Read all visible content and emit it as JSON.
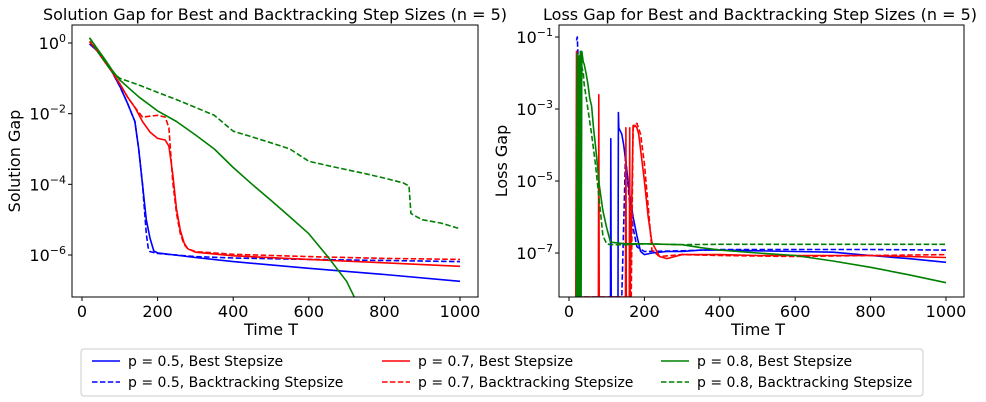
{
  "chart_data": [
    {
      "type": "line",
      "title": "Solution Gap for Best and Backtracking Step Sizes (n = 5)",
      "xlabel": "Time T",
      "ylabel": "Solution Gap",
      "yscale": "log",
      "xlim": [
        -30,
        1040
      ],
      "ylim": [
        5e-08,
        3
      ],
      "xticks": [
        0,
        200,
        400,
        600,
        800,
        1000
      ],
      "xtick_labels": [
        "0",
        "200",
        "400",
        "600",
        "800",
        "1000"
      ],
      "yticks": [
        1,
        0.01,
        0.0001,
        1e-06
      ],
      "ytick_labels": [
        "10^0",
        "10^-2",
        "10^-4",
        "10^-6"
      ],
      "grid": false,
      "series": [
        {
          "name": "p = 0.5, Best Stepsize",
          "color": "#0000ff",
          "dash": "solid",
          "x": [
            20,
            40,
            60,
            80,
            100,
            120,
            140,
            150,
            160,
            170,
            180,
            190,
            200,
            300,
            400,
            600,
            800,
            1000
          ],
          "y": [
            0.95,
            0.6,
            0.3,
            0.15,
            0.06,
            0.02,
            0.006,
            0.001,
            0.0001,
            1e-05,
            3e-06,
            1.3e-06,
            1.15e-06,
            8.5e-07,
            6.5e-07,
            4.2e-07,
            2.8e-07,
            1.8e-07
          ]
        },
        {
          "name": "p = 0.5, Backtracking Stepsize",
          "color": "#0000ff",
          "dash": "dashed",
          "x": [
            20,
            40,
            60,
            80,
            100,
            120,
            140,
            150,
            160,
            165,
            170,
            175,
            180,
            200,
            300,
            400,
            600,
            800,
            1000
          ],
          "y": [
            0.95,
            0.6,
            0.3,
            0.15,
            0.06,
            0.02,
            0.006,
            0.001,
            0.0001,
            2e-05,
            4e-06,
            1.6e-06,
            1.25e-06,
            1.1e-06,
            9e-07,
            8.2e-07,
            7.5e-07,
            7e-07,
            6.5e-07
          ]
        },
        {
          "name": "p = 0.7, Best Stepsize",
          "color": "#ff0000",
          "dash": "solid",
          "x": [
            20,
            40,
            60,
            80,
            100,
            120,
            140,
            160,
            180,
            200,
            220,
            230,
            240,
            250,
            260,
            270,
            280,
            300,
            400,
            600,
            800,
            1000
          ],
          "y": [
            1.1,
            0.6,
            0.3,
            0.15,
            0.07,
            0.03,
            0.015,
            0.006,
            0.003,
            0.002,
            0.0018,
            0.0012,
            0.0002,
            2e-05,
            5e-06,
            2.2e-06,
            1.5e-06,
            1.2e-06,
            9.5e-07,
            7.5e-07,
            6e-07,
            4.8e-07
          ]
        },
        {
          "name": "p = 0.7, Backtracking Stepsize",
          "color": "#ff0000",
          "dash": "dashed",
          "x": [
            20,
            40,
            60,
            80,
            100,
            120,
            140,
            160,
            180,
            200,
            220,
            230,
            235,
            240,
            250,
            260,
            270,
            280,
            300,
            400,
            600,
            800,
            1000
          ],
          "y": [
            1.1,
            0.6,
            0.3,
            0.15,
            0.07,
            0.03,
            0.015,
            0.008,
            0.0085,
            0.009,
            0.008,
            0.004,
            0.0007,
            0.00012,
            1.5e-05,
            4e-06,
            2e-06,
            1.5e-06,
            1.25e-06,
            1.05e-06,
            9e-07,
            8e-07,
            7.5e-07
          ]
        },
        {
          "name": "p = 0.8, Best Stepsize",
          "color": "#008000",
          "dash": "solid",
          "x": [
            20,
            40,
            60,
            80,
            100,
            150,
            200,
            250,
            300,
            350,
            400,
            450,
            500,
            550,
            600,
            650,
            700,
            730,
            750,
            800,
            900,
            1000
          ],
          "y": [
            1.4,
            0.7,
            0.35,
            0.17,
            0.09,
            0.03,
            0.012,
            0.006,
            0.0025,
            0.001,
            0.0003,
            0.0001,
            3.5e-05,
            1.2e-05,
            4e-06,
            9e-07,
            1.8e-07,
            4e-08,
            2.5e-08,
            2.2e-08,
            1.9e-08,
            1.6e-08
          ]
        },
        {
          "name": "p = 0.8, Backtracking Stepsize",
          "color": "#008000",
          "dash": "dashed",
          "x": [
            20,
            40,
            60,
            80,
            100,
            150,
            200,
            250,
            300,
            350,
            400,
            450,
            500,
            550,
            600,
            650,
            700,
            750,
            800,
            850,
            865,
            870,
            880,
            900,
            950,
            1000
          ],
          "y": [
            1.4,
            0.6,
            0.3,
            0.15,
            0.1,
            0.065,
            0.04,
            0.025,
            0.015,
            0.009,
            0.0032,
            0.0022,
            0.0015,
            0.001,
            0.00045,
            0.00034,
            0.00026,
            0.0002,
            0.00015,
            0.00011,
            9e-05,
            1.5e-05,
            1.3e-05,
            1e-05,
            8e-06,
            5.5e-06
          ]
        }
      ]
    },
    {
      "type": "line",
      "title": "Loss Gap for Best and Backtracking Step Sizes (n = 5)",
      "xlabel": "Time T",
      "ylabel": "Loss Gap",
      "yscale": "log",
      "xlim": [
        -30,
        1040
      ],
      "ylim": [
        6e-09,
        0.2
      ],
      "xticks": [
        0,
        200,
        400,
        600,
        800,
        1000
      ],
      "xtick_labels": [
        "0",
        "200",
        "400",
        "600",
        "800",
        "1000"
      ],
      "yticks": [
        0.1,
        0.001,
        1e-05,
        1e-07
      ],
      "ytick_labels": [
        "10^-1",
        "10^-3",
        "10^-5",
        "10^-7"
      ],
      "grid": false,
      "series": [
        {
          "name": "p = 0.5, Best Stepsize",
          "color": "#0000ff",
          "dash": "solid",
          "x": [
            110,
            111,
            112,
            130,
            131,
            132,
            140,
            145,
            150,
            160,
            170,
            180,
            190,
            200,
            220,
            260,
            300,
            350,
            400,
            500,
            600,
            700,
            800,
            900,
            1000
          ],
          "y": [
            6e-09,
            0.00015,
            6e-09,
            6e-09,
            0.0008,
            0.0003,
            0.0002,
            0.0001,
            4e-05,
            5e-06,
            1e-06,
            3e-07,
            1.1e-07,
            9e-08,
            1e-07,
            1.1e-07,
            1.1e-07,
            1.2e-07,
            1.2e-07,
            1.15e-07,
            1.1e-07,
            1.05e-07,
            8.5e-08,
            7e-08,
            5.5e-08
          ]
        },
        {
          "name": "p = 0.5, Backtracking Stepsize",
          "color": "#0000ff",
          "dash": "dashed",
          "x": [
            20,
            22,
            24,
            26,
            140,
            150,
            160,
            170,
            180,
            200,
            300,
            400,
            600,
            800,
            1000
          ],
          "y": [
            0.08,
            0.1,
            0.03,
            6e-09,
            6e-09,
            5e-05,
            3e-06,
            5e-07,
            1.5e-07,
            1.1e-07,
            1.15e-07,
            1.25e-07,
            1.25e-07,
            1.25e-07,
            1.2e-07
          ]
        },
        {
          "name": "p = 0.7, Best Stepsize",
          "color": "#ff0000",
          "dash": "solid",
          "x": [
            18,
            20,
            22,
            24,
            78,
            79,
            80,
            150,
            151,
            152,
            160,
            161,
            162,
            170,
            175,
            180,
            185,
            200,
            210,
            220,
            240,
            260,
            300,
            400,
            500,
            600,
            800,
            1000
          ],
          "y": [
            6e-09,
            0.04,
            0.015,
            6e-09,
            6e-09,
            0.0025,
            6e-09,
            6e-09,
            0.0003,
            6e-09,
            6e-09,
            0.0003,
            6e-09,
            0.00035,
            0.00035,
            0.0003,
            0.0002,
            1e-05,
            1e-06,
            2e-07,
            8e-08,
            7e-08,
            9e-08,
            9e-08,
            8.5e-08,
            8.5e-08,
            8.5e-08,
            7.5e-08
          ]
        },
        {
          "name": "p = 0.7, Backtracking Stepsize",
          "color": "#ff0000",
          "dash": "dashed",
          "x": [
            165,
            170,
            180,
            190,
            200,
            210,
            220,
            240,
            300,
            400,
            600,
            800,
            1000
          ],
          "y": [
            6e-09,
            0.0003,
            0.0004,
            0.0002,
            3e-05,
            2e-06,
            1.2e-07,
            8e-08,
            9e-08,
            8.5e-08,
            8e-08,
            8.5e-08,
            9e-08
          ]
        },
        {
          "name": "p = 0.8, Best Stepsize",
          "color": "#008000",
          "dash": "solid",
          "x": [
            20,
            22,
            24,
            26,
            28,
            30,
            32,
            34,
            38,
            40,
            45,
            50,
            55,
            60,
            65,
            70,
            75,
            80,
            90,
            100,
            110,
            150,
            200,
            300,
            350,
            400,
            500,
            600,
            700,
            800,
            900,
            1000
          ],
          "y": [
            6e-09,
            0.035,
            6e-09,
            0.03,
            6e-09,
            0.04,
            6e-09,
            0.04,
            0.02,
            0.018,
            0.01,
            0.005,
            0.002,
            0.0012,
            0.0003,
            0.0001,
            3e-05,
            8e-06,
            1.5e-06,
            5e-07,
            2e-07,
            1.8e-07,
            1.8e-07,
            1.7e-07,
            1.4e-07,
            1.2e-07,
            1e-07,
            8.5e-08,
            6e-08,
            4e-08,
            2.5e-08,
            1.5e-08
          ]
        },
        {
          "name": "p = 0.8, Backtracking Stepsize",
          "color": "#008000",
          "dash": "dashed",
          "x": [
            30,
            34,
            38,
            40,
            50,
            60,
            70,
            80,
            90,
            100,
            110,
            150,
            200,
            300,
            400,
            600,
            800,
            1000
          ],
          "y": [
            6e-09,
            0.015,
            0.01,
            0.005,
            0.001,
            0.0002,
            3e-05,
            3e-06,
            3e-07,
            1.8e-07,
            1.7e-07,
            1.7e-07,
            1.8e-07,
            1.7e-07,
            1.75e-07,
            1.75e-07,
            1.75e-07,
            1.75e-07
          ]
        }
      ]
    }
  ],
  "legend": {
    "position": "below",
    "columns": 3,
    "entries": [
      {
        "label": "p = 0.5, Best Stepsize",
        "color": "#0000ff",
        "dash": "solid"
      },
      {
        "label": "p = 0.5, Backtracking Stepsize",
        "color": "#0000ff",
        "dash": "dashed"
      },
      {
        "label": "p = 0.7, Best Stepsize",
        "color": "#ff0000",
        "dash": "solid"
      },
      {
        "label": "p = 0.7, Backtracking Stepsize",
        "color": "#ff0000",
        "dash": "dashed"
      },
      {
        "label": "p = 0.8, Best Stepsize",
        "color": "#008000",
        "dash": "solid"
      },
      {
        "label": "p = 0.8, Backtracking Stepsize",
        "color": "#008000",
        "dash": "dashed"
      }
    ]
  }
}
